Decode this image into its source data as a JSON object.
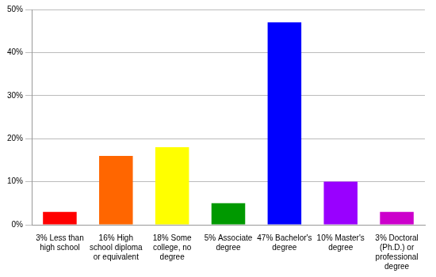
{
  "chart_data": {
    "type": "bar",
    "categories": [
      "3% Less than high school",
      "16% High school diploma or equivalent",
      "18% Some college, no degree",
      "5% Associate degree",
      "47% Bachelor's degree",
      "10% Master's degree",
      "3% Doctoral (Ph.D.) or professional degree"
    ],
    "values": [
      3,
      16,
      18,
      5,
      47,
      10,
      3
    ],
    "colors": [
      "#ff0000",
      "#ff6600",
      "#ffff00",
      "#009900",
      "#0000ff",
      "#9900ff",
      "#cc00cc"
    ],
    "ylim": [
      0,
      50
    ],
    "yticks": [
      {
        "value": 0,
        "label": "0%"
      },
      {
        "value": 10,
        "label": "10%"
      },
      {
        "value": 20,
        "label": "20%"
      },
      {
        "value": 30,
        "label": "30%"
      },
      {
        "value": 40,
        "label": "40%"
      },
      {
        "value": 50,
        "label": "50%"
      }
    ],
    "grid": true
  }
}
